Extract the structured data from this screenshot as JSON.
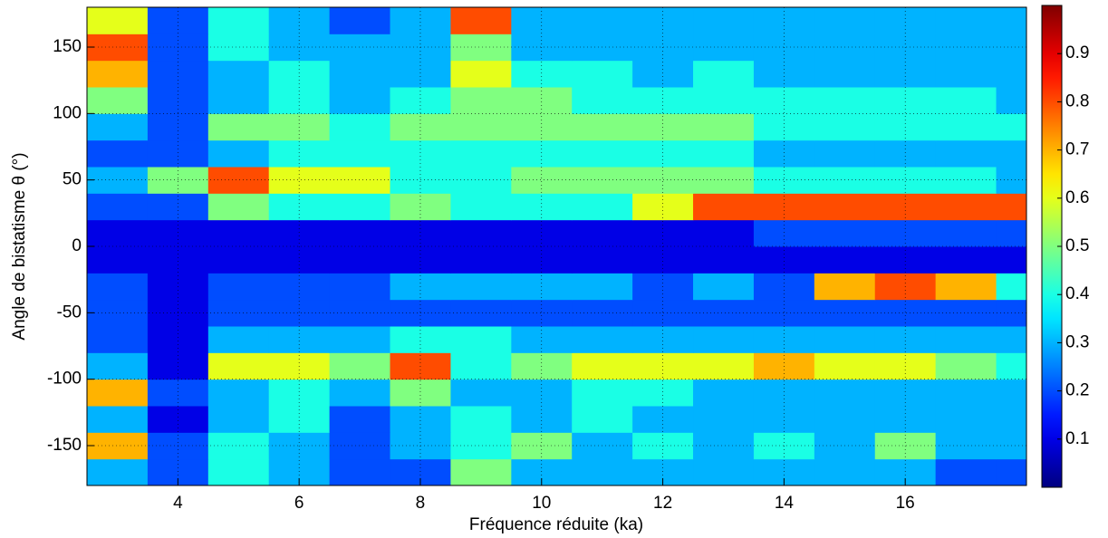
{
  "chart_data": {
    "type": "heatmap",
    "xlabel": "Fréquence réduite (ka)",
    "ylabel": "Angle de bistatisme θ (°)",
    "x": [
      3,
      4,
      5,
      6,
      7,
      8,
      9,
      10,
      11,
      12,
      13,
      14,
      15,
      16,
      17,
      18
    ],
    "y": [
      -170,
      -150,
      -130,
      -110,
      -90,
      -70,
      -50,
      -30,
      -10,
      10,
      30,
      50,
      70,
      90,
      110,
      130,
      150,
      170
    ],
    "z": [
      [
        0.3,
        0.2,
        0.4,
        0.3,
        0.2,
        0.2,
        0.5,
        0.3,
        0.3,
        0.3,
        0.3,
        0.3,
        0.3,
        0.3,
        0.2,
        0.2
      ],
      [
        0.7,
        0.2,
        0.4,
        0.3,
        0.2,
        0.3,
        0.4,
        0.5,
        0.3,
        0.4,
        0.3,
        0.4,
        0.3,
        0.5,
        0.3,
        0.3
      ],
      [
        0.3,
        0.1,
        0.3,
        0.4,
        0.2,
        0.3,
        0.4,
        0.3,
        0.4,
        0.3,
        0.3,
        0.3,
        0.3,
        0.3,
        0.3,
        0.3
      ],
      [
        0.7,
        0.2,
        0.3,
        0.4,
        0.3,
        0.5,
        0.3,
        0.3,
        0.4,
        0.4,
        0.3,
        0.3,
        0.3,
        0.3,
        0.3,
        0.3
      ],
      [
        0.3,
        0.1,
        0.6,
        0.6,
        0.5,
        0.8,
        0.4,
        0.5,
        0.6,
        0.6,
        0.6,
        0.7,
        0.6,
        0.6,
        0.5,
        0.4
      ],
      [
        0.2,
        0.1,
        0.3,
        0.3,
        0.3,
        0.4,
        0.4,
        0.3,
        0.3,
        0.3,
        0.3,
        0.3,
        0.3,
        0.3,
        0.3,
        0.3
      ],
      [
        0.2,
        0.1,
        0.2,
        0.2,
        0.2,
        0.2,
        0.2,
        0.2,
        0.2,
        0.2,
        0.2,
        0.2,
        0.2,
        0.2,
        0.2,
        0.2
      ],
      [
        0.2,
        0.1,
        0.2,
        0.2,
        0.2,
        0.3,
        0.3,
        0.3,
        0.3,
        0.2,
        0.3,
        0.2,
        0.7,
        0.8,
        0.7,
        0.4
      ],
      [
        0.1,
        0.1,
        0.1,
        0.1,
        0.1,
        0.1,
        0.1,
        0.1,
        0.1,
        0.1,
        0.1,
        0.1,
        0.1,
        0.1,
        0.1,
        0.1
      ],
      [
        0.1,
        0.1,
        0.1,
        0.1,
        0.1,
        0.1,
        0.1,
        0.1,
        0.1,
        0.1,
        0.1,
        0.2,
        0.2,
        0.2,
        0.2,
        0.2
      ],
      [
        0.2,
        0.2,
        0.5,
        0.4,
        0.4,
        0.5,
        0.4,
        0.4,
        0.4,
        0.6,
        0.8,
        0.8,
        0.8,
        0.8,
        0.8,
        0.8
      ],
      [
        0.3,
        0.5,
        0.8,
        0.6,
        0.6,
        0.4,
        0.4,
        0.5,
        0.5,
        0.5,
        0.5,
        0.4,
        0.4,
        0.4,
        0.4,
        0.3
      ],
      [
        0.2,
        0.2,
        0.3,
        0.4,
        0.4,
        0.4,
        0.4,
        0.4,
        0.4,
        0.4,
        0.4,
        0.3,
        0.3,
        0.3,
        0.3,
        0.3
      ],
      [
        0.3,
        0.2,
        0.5,
        0.5,
        0.4,
        0.5,
        0.5,
        0.5,
        0.5,
        0.5,
        0.5,
        0.4,
        0.4,
        0.4,
        0.4,
        0.4
      ],
      [
        0.5,
        0.2,
        0.3,
        0.4,
        0.3,
        0.4,
        0.5,
        0.5,
        0.4,
        0.4,
        0.4,
        0.4,
        0.4,
        0.4,
        0.4,
        0.3
      ],
      [
        0.7,
        0.2,
        0.3,
        0.4,
        0.3,
        0.3,
        0.6,
        0.4,
        0.4,
        0.3,
        0.4,
        0.3,
        0.3,
        0.3,
        0.3,
        0.3
      ],
      [
        0.8,
        0.2,
        0.4,
        0.3,
        0.3,
        0.3,
        0.5,
        0.3,
        0.3,
        0.3,
        0.3,
        0.3,
        0.3,
        0.3,
        0.3,
        0.3
      ],
      [
        0.6,
        0.2,
        0.4,
        0.3,
        0.2,
        0.3,
        0.8,
        0.3,
        0.3,
        0.3,
        0.3,
        0.3,
        0.3,
        0.3,
        0.3,
        0.3
      ]
    ],
    "colormap": "jet",
    "xlim": [
      2.5,
      18
    ],
    "ylim": [
      -180,
      180
    ],
    "xticks": [
      4,
      6,
      8,
      10,
      12,
      14,
      16
    ],
    "yticks": [
      -150,
      -100,
      -50,
      0,
      50,
      100,
      150
    ],
    "clim": [
      0,
      1
    ],
    "cticks": [
      0.1,
      0.2,
      0.3,
      0.4,
      0.5,
      0.6,
      0.7,
      0.8,
      0.9
    ],
    "grid": true
  }
}
